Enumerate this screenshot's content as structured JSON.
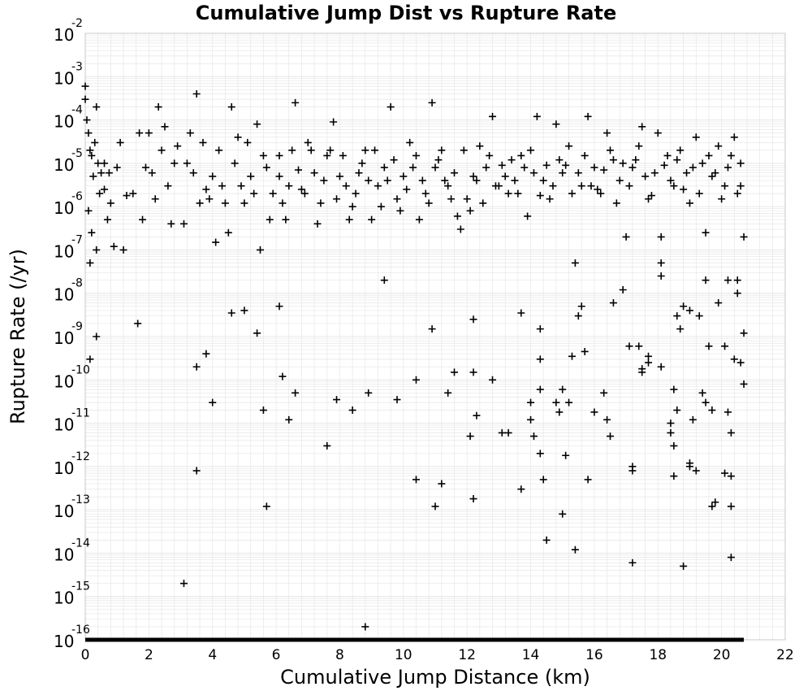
{
  "chart_data": {
    "type": "scatter",
    "title": "Cumulative Jump Dist vs Rupture Rate",
    "xlabel": "Cumulative Jump Distance (km)",
    "ylabel": "Rupture Rate (/yr)",
    "xlim": [
      0,
      22
    ],
    "ylim": [
      1e-16,
      0.01
    ],
    "yscale": "log",
    "grid": true,
    "marker": "plus",
    "marker_color": "#000000",
    "grid_color": "#e6e6e6",
    "x_ticks": [
      "0",
      "2",
      "4",
      "6",
      "8",
      "10",
      "12",
      "14",
      "16",
      "18",
      "20",
      "22"
    ],
    "y_tick_base": "10",
    "y_tick_exponents": [
      "-2",
      "-3",
      "-4",
      "-5",
      "-6",
      "-7",
      "-8",
      "-9",
      "-10",
      "-11",
      "-12",
      "-13",
      "-14",
      "-15",
      "-16"
    ],
    "floor_band": {
      "xmin": 0,
      "xmax": 20.7,
      "y": 1e-16
    },
    "points": [
      [
        0.0,
        0.0006
      ],
      [
        0.0,
        0.0003
      ],
      [
        0.05,
        0.0001
      ],
      [
        0.1,
        5e-05
      ],
      [
        0.15,
        2e-05
      ],
      [
        0.2,
        1.5e-05
      ],
      [
        0.3,
        3e-05
      ],
      [
        0.35,
        0.0002
      ],
      [
        0.4,
        1e-05
      ],
      [
        0.5,
        6e-06
      ],
      [
        0.6,
        2.5e-06
      ],
      [
        0.7,
        5e-07
      ],
      [
        0.1,
        8e-07
      ],
      [
        0.2,
        2.5e-07
      ],
      [
        0.15,
        5e-08
      ],
      [
        0.35,
        1e-07
      ],
      [
        0.8,
        1.2e-06
      ],
      [
        0.9,
        1.2e-07
      ],
      [
        1.0,
        8e-06
      ],
      [
        1.1,
        3e-05
      ],
      [
        1.2,
        1e-07
      ],
      [
        1.3,
        1.8e-06
      ],
      [
        1.5,
        2e-06
      ],
      [
        1.7,
        5e-05
      ],
      [
        1.8,
        5e-07
      ],
      [
        1.9,
        8e-06
      ],
      [
        2.0,
        5e-05
      ],
      [
        2.2,
        1.5e-06
      ],
      [
        2.3,
        0.0002
      ],
      [
        2.5,
        7e-05
      ],
      [
        2.7,
        4e-07
      ],
      [
        2.9,
        2.5e-05
      ],
      [
        3.1,
        4e-07
      ],
      [
        3.3,
        5e-05
      ],
      [
        3.5,
        0.0004
      ],
      [
        3.6,
        1.2e-06
      ],
      [
        3.8,
        2.5e-06
      ],
      [
        4.0,
        5e-06
      ],
      [
        4.1,
        1.5e-07
      ],
      [
        4.3,
        3e-06
      ],
      [
        4.5,
        2.5e-07
      ],
      [
        4.6,
        0.0002
      ],
      [
        4.8,
        4e-05
      ],
      [
        5.0,
        1.2e-06
      ],
      [
        5.2,
        5e-06
      ],
      [
        5.4,
        8e-05
      ],
      [
        5.5,
        1e-07
      ],
      [
        5.7,
        8e-06
      ],
      [
        5.9,
        2e-06
      ],
      [
        6.1,
        5e-06
      ],
      [
        6.2,
        1.2e-06
      ],
      [
        6.4,
        3e-06
      ],
      [
        6.6,
        0.00025
      ],
      [
        6.8,
        2.5e-06
      ],
      [
        7.0,
        3e-05
      ],
      [
        7.2,
        6e-06
      ],
      [
        7.4,
        1.2e-06
      ],
      [
        7.6,
        1.5e-05
      ],
      [
        7.8,
        9e-05
      ],
      [
        8.0,
        5e-06
      ],
      [
        8.2,
        3e-06
      ],
      [
        8.4,
        1e-06
      ],
      [
        8.6,
        6e-06
      ],
      [
        8.8,
        2e-05
      ],
      [
        9.0,
        5e-07
      ],
      [
        9.2,
        3e-06
      ],
      [
        9.4,
        8e-06
      ],
      [
        9.6,
        0.0002
      ],
      [
        9.8,
        1.5e-06
      ],
      [
        10.0,
        5e-06
      ],
      [
        10.2,
        3e-05
      ],
      [
        10.4,
        1.5e-05
      ],
      [
        10.6,
        4e-06
      ],
      [
        10.8,
        1.2e-06
      ],
      [
        10.9,
        0.00025
      ],
      [
        11.0,
        8e-06
      ],
      [
        11.2,
        2e-05
      ],
      [
        11.4,
        3e-06
      ],
      [
        11.6,
        6e-06
      ],
      [
        11.8,
        3e-07
      ],
      [
        12.0,
        1.5e-06
      ],
      [
        12.2,
        5e-06
      ],
      [
        12.4,
        2.5e-05
      ],
      [
        12.6,
        8e-06
      ],
      [
        12.8,
        0.00012
      ],
      [
        13.0,
        3e-06
      ],
      [
        13.2,
        5e-06
      ],
      [
        13.4,
        1.2e-05
      ],
      [
        13.6,
        2e-06
      ],
      [
        13.8,
        8e-06
      ],
      [
        14.0,
        2e-05
      ],
      [
        14.2,
        0.00012
      ],
      [
        14.4,
        4e-06
      ],
      [
        14.6,
        1.5e-06
      ],
      [
        14.8,
        8e-05
      ],
      [
        15.0,
        6e-06
      ],
      [
        15.2,
        2.5e-05
      ],
      [
        15.4,
        5e-08
      ],
      [
        15.6,
        3e-06
      ],
      [
        15.8,
        0.00012
      ],
      [
        16.0,
        8e-06
      ],
      [
        16.2,
        2e-06
      ],
      [
        16.4,
        5e-05
      ],
      [
        16.6,
        1.2e-05
      ],
      [
        16.8,
        4e-06
      ],
      [
        17.0,
        2e-07
      ],
      [
        17.2,
        8e-06
      ],
      [
        17.4,
        2.5e-05
      ],
      [
        17.5,
        7e-05
      ],
      [
        17.7,
        1.5e-06
      ],
      [
        17.9,
        6e-06
      ],
      [
        18.0,
        5e-05
      ],
      [
        18.1,
        2e-07
      ],
      [
        18.3,
        1.5e-05
      ],
      [
        18.5,
        3e-06
      ],
      [
        18.7,
        2e-05
      ],
      [
        18.9,
        6e-06
      ],
      [
        19.0,
        1.2e-06
      ],
      [
        19.2,
        4e-05
      ],
      [
        19.4,
        1e-05
      ],
      [
        19.5,
        2.5e-07
      ],
      [
        19.7,
        5e-06
      ],
      [
        19.9,
        2.5e-05
      ],
      [
        20.0,
        1.5e-06
      ],
      [
        20.2,
        8e-06
      ],
      [
        20.4,
        4e-05
      ],
      [
        20.5,
        2e-06
      ],
      [
        20.6,
        1e-05
      ],
      [
        20.7,
        2e-07
      ],
      [
        20.6,
        3e-06
      ],
      [
        16.9,
        1e-05
      ],
      [
        17.1,
        3e-06
      ],
      [
        17.3,
        1.2e-05
      ],
      [
        17.6,
        5e-06
      ],
      [
        17.8,
        1.8e-06
      ],
      [
        18.2,
        9e-06
      ],
      [
        18.4,
        4e-06
      ],
      [
        18.6,
        1.2e-05
      ],
      [
        18.8,
        2.5e-06
      ],
      [
        19.1,
        8e-06
      ],
      [
        19.3,
        2e-06
      ],
      [
        19.6,
        1.5e-05
      ],
      [
        19.8,
        6e-06
      ],
      [
        20.1,
        3e-06
      ],
      [
        20.3,
        1.5e-05
      ],
      [
        16.1,
        2.5e-06
      ],
      [
        16.3,
        7e-06
      ],
      [
        16.5,
        2e-05
      ],
      [
        16.7,
        1.2e-06
      ],
      [
        15.1,
        9e-06
      ],
      [
        15.3,
        2e-06
      ],
      [
        15.5,
        6e-06
      ],
      [
        15.7,
        1.5e-05
      ],
      [
        15.9,
        3e-06
      ],
      [
        14.1,
        6e-06
      ],
      [
        14.3,
        1.8e-06
      ],
      [
        14.5,
        9e-06
      ],
      [
        14.7,
        3e-06
      ],
      [
        14.9,
        1.2e-05
      ],
      [
        13.1,
        9e-06
      ],
      [
        13.3,
        2e-06
      ],
      [
        13.5,
        4e-06
      ],
      [
        13.7,
        1.5e-05
      ],
      [
        13.9,
        6e-07
      ],
      [
        12.1,
        8e-07
      ],
      [
        12.3,
        4e-06
      ],
      [
        12.5,
        1.2e-06
      ],
      [
        12.7,
        1.5e-05
      ],
      [
        12.9,
        3e-06
      ],
      [
        11.1,
        1.2e-05
      ],
      [
        11.3,
        4e-06
      ],
      [
        11.5,
        1.5e-06
      ],
      [
        11.7,
        6e-07
      ],
      [
        11.9,
        2e-05
      ],
      [
        10.1,
        2.5e-06
      ],
      [
        10.3,
        8e-06
      ],
      [
        10.5,
        5e-07
      ],
      [
        10.7,
        2e-06
      ],
      [
        9.1,
        2e-05
      ],
      [
        9.3,
        1e-06
      ],
      [
        9.5,
        4e-06
      ],
      [
        9.7,
        1.2e-05
      ],
      [
        9.9,
        8e-07
      ],
      [
        8.1,
        1.5e-05
      ],
      [
        8.3,
        5e-07
      ],
      [
        8.5,
        2e-06
      ],
      [
        8.7,
        1e-05
      ],
      [
        8.9,
        4e-06
      ],
      [
        7.1,
        2e-05
      ],
      [
        7.3,
        4e-07
      ],
      [
        7.5,
        4e-06
      ],
      [
        7.7,
        2e-05
      ],
      [
        7.9,
        1.5e-06
      ],
      [
        6.1,
        1.5e-05
      ],
      [
        6.3,
        5e-07
      ],
      [
        6.5,
        2e-05
      ],
      [
        6.7,
        7e-06
      ],
      [
        6.9,
        2e-06
      ],
      [
        5.1,
        3e-05
      ],
      [
        5.3,
        2e-06
      ],
      [
        5.6,
        1.5e-05
      ],
      [
        5.8,
        5e-07
      ],
      [
        4.2,
        2e-05
      ],
      [
        4.4,
        1.2e-06
      ],
      [
        4.7,
        1e-05
      ],
      [
        4.9,
        3e-06
      ],
      [
        3.2,
        1e-05
      ],
      [
        3.4,
        6e-06
      ],
      [
        3.7,
        3e-05
      ],
      [
        3.9,
        1.5e-06
      ],
      [
        2.1,
        6e-06
      ],
      [
        2.4,
        2e-05
      ],
      [
        2.6,
        3e-06
      ],
      [
        2.8,
        1e-05
      ],
      [
        0.6,
        1e-05
      ],
      [
        0.75,
        6e-06
      ],
      [
        0.25,
        5e-06
      ],
      [
        0.45,
        2e-06
      ],
      [
        0.15,
        3e-10
      ],
      [
        0.35,
        1e-09
      ],
      [
        1.65,
        2e-09
      ],
      [
        3.1,
        2e-15
      ],
      [
        3.5,
        2e-10
      ],
      [
        3.5,
        8e-13
      ],
      [
        3.8,
        4e-10
      ],
      [
        4.0,
        3e-11
      ],
      [
        4.6,
        3.5e-09
      ],
      [
        5.0,
        4e-09
      ],
      [
        5.4,
        1.2e-09
      ],
      [
        5.6,
        2e-11
      ],
      [
        5.7,
        1.2e-13
      ],
      [
        6.1,
        5e-09
      ],
      [
        6.2,
        1.2e-10
      ],
      [
        6.4,
        1.2e-11
      ],
      [
        6.6,
        5e-11
      ],
      [
        7.6,
        3e-12
      ],
      [
        7.9,
        3.5e-11
      ],
      [
        8.4,
        2e-11
      ],
      [
        8.8,
        2e-16
      ],
      [
        8.9,
        5e-11
      ],
      [
        9.4,
        2e-08
      ],
      [
        9.8,
        3.5e-11
      ],
      [
        10.4,
        1e-10
      ],
      [
        10.4,
        5e-13
      ],
      [
        10.9,
        1.5e-09
      ],
      [
        11.0,
        1.2e-13
      ],
      [
        11.2,
        4e-13
      ],
      [
        11.4,
        5e-11
      ],
      [
        11.6,
        1.5e-10
      ],
      [
        12.1,
        5e-12
      ],
      [
        12.2,
        1.5e-10
      ],
      [
        12.2,
        2.5e-09
      ],
      [
        12.2,
        1.8e-13
      ],
      [
        12.3,
        1.5e-11
      ],
      [
        12.8,
        1e-10
      ],
      [
        13.1,
        6e-12
      ],
      [
        13.3,
        6e-12
      ],
      [
        13.7,
        3.5e-09
      ],
      [
        13.7,
        3e-13
      ],
      [
        14.0,
        3e-11
      ],
      [
        14.0,
        1.2e-11
      ],
      [
        14.3,
        1.5e-09
      ],
      [
        14.3,
        3e-10
      ],
      [
        14.3,
        6e-11
      ],
      [
        14.3,
        2e-12
      ],
      [
        14.4,
        5e-13
      ],
      [
        14.5,
        2e-14
      ],
      [
        14.8,
        3e-11
      ],
      [
        14.9,
        1.8e-11
      ],
      [
        15.0,
        8e-14
      ],
      [
        15.1,
        1.8e-12
      ],
      [
        15.2,
        3e-11
      ],
      [
        15.3,
        3.5e-10
      ],
      [
        15.4,
        1.2e-14
      ],
      [
        15.5,
        3e-09
      ],
      [
        15.6,
        5e-09
      ],
      [
        15.7,
        4.5e-10
      ],
      [
        15.8,
        5e-13
      ],
      [
        16.3,
        5e-11
      ],
      [
        16.4,
        1.2e-11
      ],
      [
        16.5,
        5e-12
      ],
      [
        16.6,
        6e-09
      ],
      [
        16.9,
        1.2e-08
      ],
      [
        17.1,
        6e-10
      ],
      [
        17.2,
        1e-12
      ],
      [
        17.2,
        6e-15
      ],
      [
        17.4,
        6e-10
      ],
      [
        17.5,
        1.8e-10
      ],
      [
        17.5,
        1.5e-10
      ],
      [
        17.7,
        2.5e-10
      ],
      [
        17.7,
        3.5e-10
      ],
      [
        18.1,
        2e-10
      ],
      [
        18.1,
        5e-08
      ],
      [
        18.1,
        2.5e-08
      ],
      [
        18.4,
        6e-12
      ],
      [
        18.5,
        3e-12
      ],
      [
        18.5,
        6e-11
      ],
      [
        18.5,
        6e-13
      ],
      [
        18.6,
        2e-11
      ],
      [
        18.6,
        3e-09
      ],
      [
        18.7,
        1.5e-09
      ],
      [
        18.8,
        5e-09
      ],
      [
        18.8,
        5e-15
      ],
      [
        19.0,
        4e-09
      ],
      [
        19.0,
        1.2e-12
      ],
      [
        19.0,
        1e-12
      ],
      [
        19.1,
        1.2e-11
      ],
      [
        19.2,
        8e-13
      ],
      [
        19.3,
        3e-09
      ],
      [
        19.4,
        5e-11
      ],
      [
        19.5,
        3e-11
      ],
      [
        19.5,
        2e-08
      ],
      [
        19.6,
        6e-10
      ],
      [
        19.7,
        2e-11
      ],
      [
        19.7,
        1.2e-13
      ],
      [
        19.9,
        6e-09
      ],
      [
        20.1,
        6e-10
      ],
      [
        20.1,
        7e-13
      ],
      [
        20.2,
        1.8e-11
      ],
      [
        20.3,
        1.2e-13
      ],
      [
        20.3,
        6e-12
      ],
      [
        20.4,
        3e-10
      ],
      [
        20.5,
        1e-08
      ],
      [
        20.5,
        2e-08
      ],
      [
        20.6,
        2.5e-10
      ],
      [
        20.7,
        1.2e-09
      ],
      [
        20.7,
        8e-11
      ],
      [
        20.3,
        6e-13
      ],
      [
        20.3,
        8e-15
      ],
      [
        19.8,
        1.5e-13
      ],
      [
        18.4,
        1e-11
      ],
      [
        17.2,
        8e-13
      ],
      [
        14.1,
        5e-12
      ],
      [
        16.0,
        1.8e-11
      ],
      [
        20.2,
        2e-08
      ],
      [
        15.0,
        6e-11
      ]
    ]
  }
}
